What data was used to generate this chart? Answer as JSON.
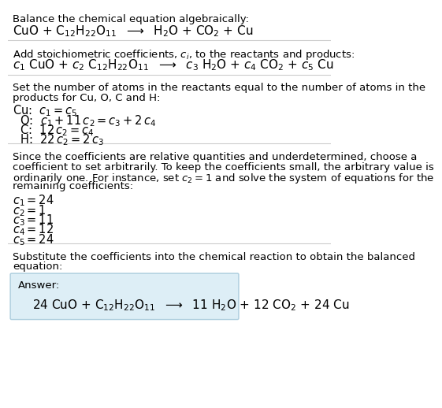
{
  "section1_title": "Balance the chemical equation algebraically:",
  "section1_eq": "CuO + C$_{12}$H$_{22}$O$_{11}$  $\\longrightarrow$  H$_2$O + CO$_2$ + Cu",
  "section2_header": "Add stoichiometric coefficients, $c_i$, to the reactants and products:",
  "section2_eq": "$c_1$ CuO + $c_2$ C$_{12}$H$_{22}$O$_{11}$  $\\longrightarrow$  $c_3$ H$_2$O + $c_4$ CO$_2$ + $c_5$ Cu",
  "section3_header1": "Set the number of atoms in the reactants equal to the number of atoms in the",
  "section3_header2": "products for Cu, O, C and H:",
  "section3_cu": "Cu:  $c_1 = c_5$",
  "section3_o": "  O:  $c_1 + 11\\,c_2 = c_3 + 2\\,c_4$",
  "section3_c": "  C:  $12\\,c_2 = c_4$",
  "section3_h": "  H:  $22\\,c_2 = 2\\,c_3$",
  "section4_header1": "Since the coefficients are relative quantities and underdetermined, choose a",
  "section4_header2": "coefficient to set arbitrarily. To keep the coefficients small, the arbitrary value is",
  "section4_header3": "ordinarily one. For instance, set $c_2 = 1$ and solve the system of equations for the",
  "section4_header4": "remaining coefficients:",
  "section4_c1": "$c_1 = 24$",
  "section4_c2": "$c_2 = 1$",
  "section4_c3": "$c_3 = 11$",
  "section4_c4": "$c_4 = 12$",
  "section4_c5": "$c_5 = 24$",
  "section5_header1": "Substitute the coefficients into the chemical reaction to obtain the balanced",
  "section5_header2": "equation:",
  "answer_label": "Answer:",
  "answer_eq": "24 CuO + C$_{12}$H$_{22}$O$_{11}$  $\\longrightarrow$  11 H$_2$O + 12 CO$_2$ + 24 Cu",
  "bg_color": "#ffffff",
  "box_facecolor": "#ddeef6",
  "box_edgecolor": "#aaccdd",
  "line_color": "#cccccc",
  "text_color": "#000000",
  "fs": 9.5
}
